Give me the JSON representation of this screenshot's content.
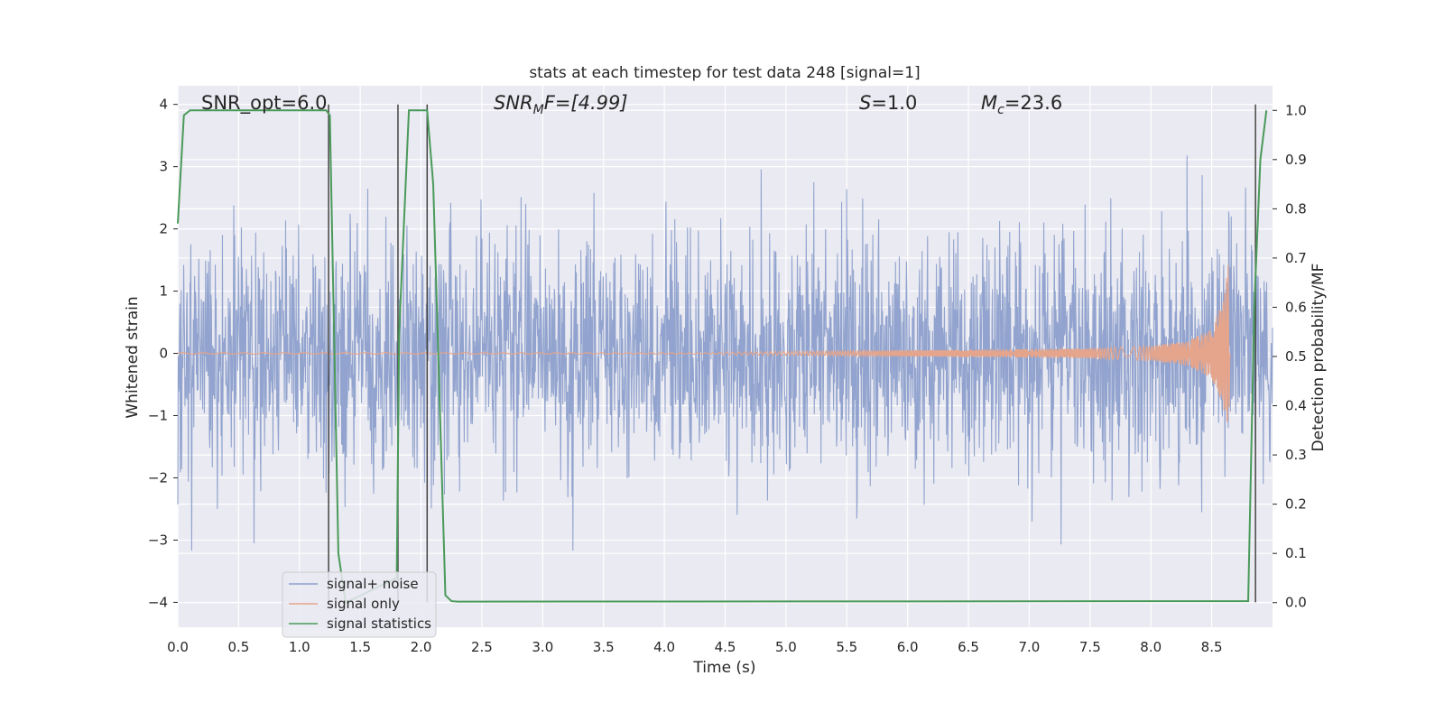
{
  "chart_data": {
    "type": "line",
    "title": "stats at each timestep for test data 248 [signal=1]",
    "xlabel": "Time (s)",
    "ylabel": "Whitened strain",
    "ylabel_right": "Detection probability/MF",
    "xlim": [
      0.0,
      9.0
    ],
    "ylim": [
      -4.4,
      4.3
    ],
    "ylim_right": [
      -0.05,
      1.05
    ],
    "x_ticks": [
      "0.0",
      "0.5",
      "1.0",
      "1.5",
      "2.0",
      "2.5",
      "3.0",
      "3.5",
      "4.0",
      "4.5",
      "5.0",
      "5.5",
      "6.0",
      "6.5",
      "7.0",
      "7.5",
      "8.0",
      "8.5"
    ],
    "y_ticks": [
      "−4",
      "−3",
      "−2",
      "−1",
      "0",
      "1",
      "2",
      "3",
      "4"
    ],
    "y_right_ticks": [
      "0.0",
      "0.1",
      "0.2",
      "0.3",
      "0.4",
      "0.5",
      "0.6",
      "0.7",
      "0.8",
      "0.9",
      "1.0"
    ],
    "grid": true,
    "legend_position": "lower-left",
    "annotations": {
      "snr_opt": "SNR_opt=6.0",
      "snr_mf_main": "SNR",
      "snr_mf_sub": "M",
      "snr_mf_rest": "F=[4.99]",
      "s_main": "S",
      "s_rest": "=1.0",
      "mc_main": "M",
      "mc_sub": "c",
      "mc_rest": "=23.6"
    },
    "series": [
      {
        "name": "signal+ noise",
        "color": "#8c9fcb",
        "style": "noise",
        "x_range": [
          0.0,
          9.0
        ],
        "envelope_core": 1.6,
        "envelope_peak_max": 3.95,
        "envelope_peak_min": -3.95
      },
      {
        "name": "signal only",
        "color": "#e5a58c",
        "style": "chirp",
        "x": [
          4.5,
          5.5,
          6.5,
          7.5,
          8.0,
          8.3,
          8.5,
          8.6,
          8.64,
          8.65
        ],
        "amplitude": [
          0.02,
          0.04,
          0.06,
          0.08,
          0.12,
          0.2,
          0.4,
          0.9,
          1.5,
          0.0
        ]
      },
      {
        "name": "signal statistics",
        "color": "#4a9a5a",
        "axis": "right",
        "x": [
          0.0,
          0.05,
          0.1,
          1.22,
          1.25,
          1.32,
          1.38,
          1.8,
          1.82,
          1.9,
          2.05,
          2.1,
          2.2,
          2.25,
          2.3,
          8.8,
          8.85,
          8.9,
          8.95
        ],
        "values": [
          0.77,
          0.99,
          1.0,
          1.0,
          0.99,
          0.1,
          0.0,
          0.05,
          0.55,
          1.0,
          1.0,
          0.85,
          0.015,
          0.003,
          0.002,
          0.003,
          0.6,
          0.9,
          1.0
        ]
      }
    ],
    "vertical_lines": {
      "color": "#444444",
      "x": [
        1.24,
        1.81,
        2.05,
        8.86
      ],
      "y_top": 4.0,
      "y_bottom": -4.0
    }
  }
}
